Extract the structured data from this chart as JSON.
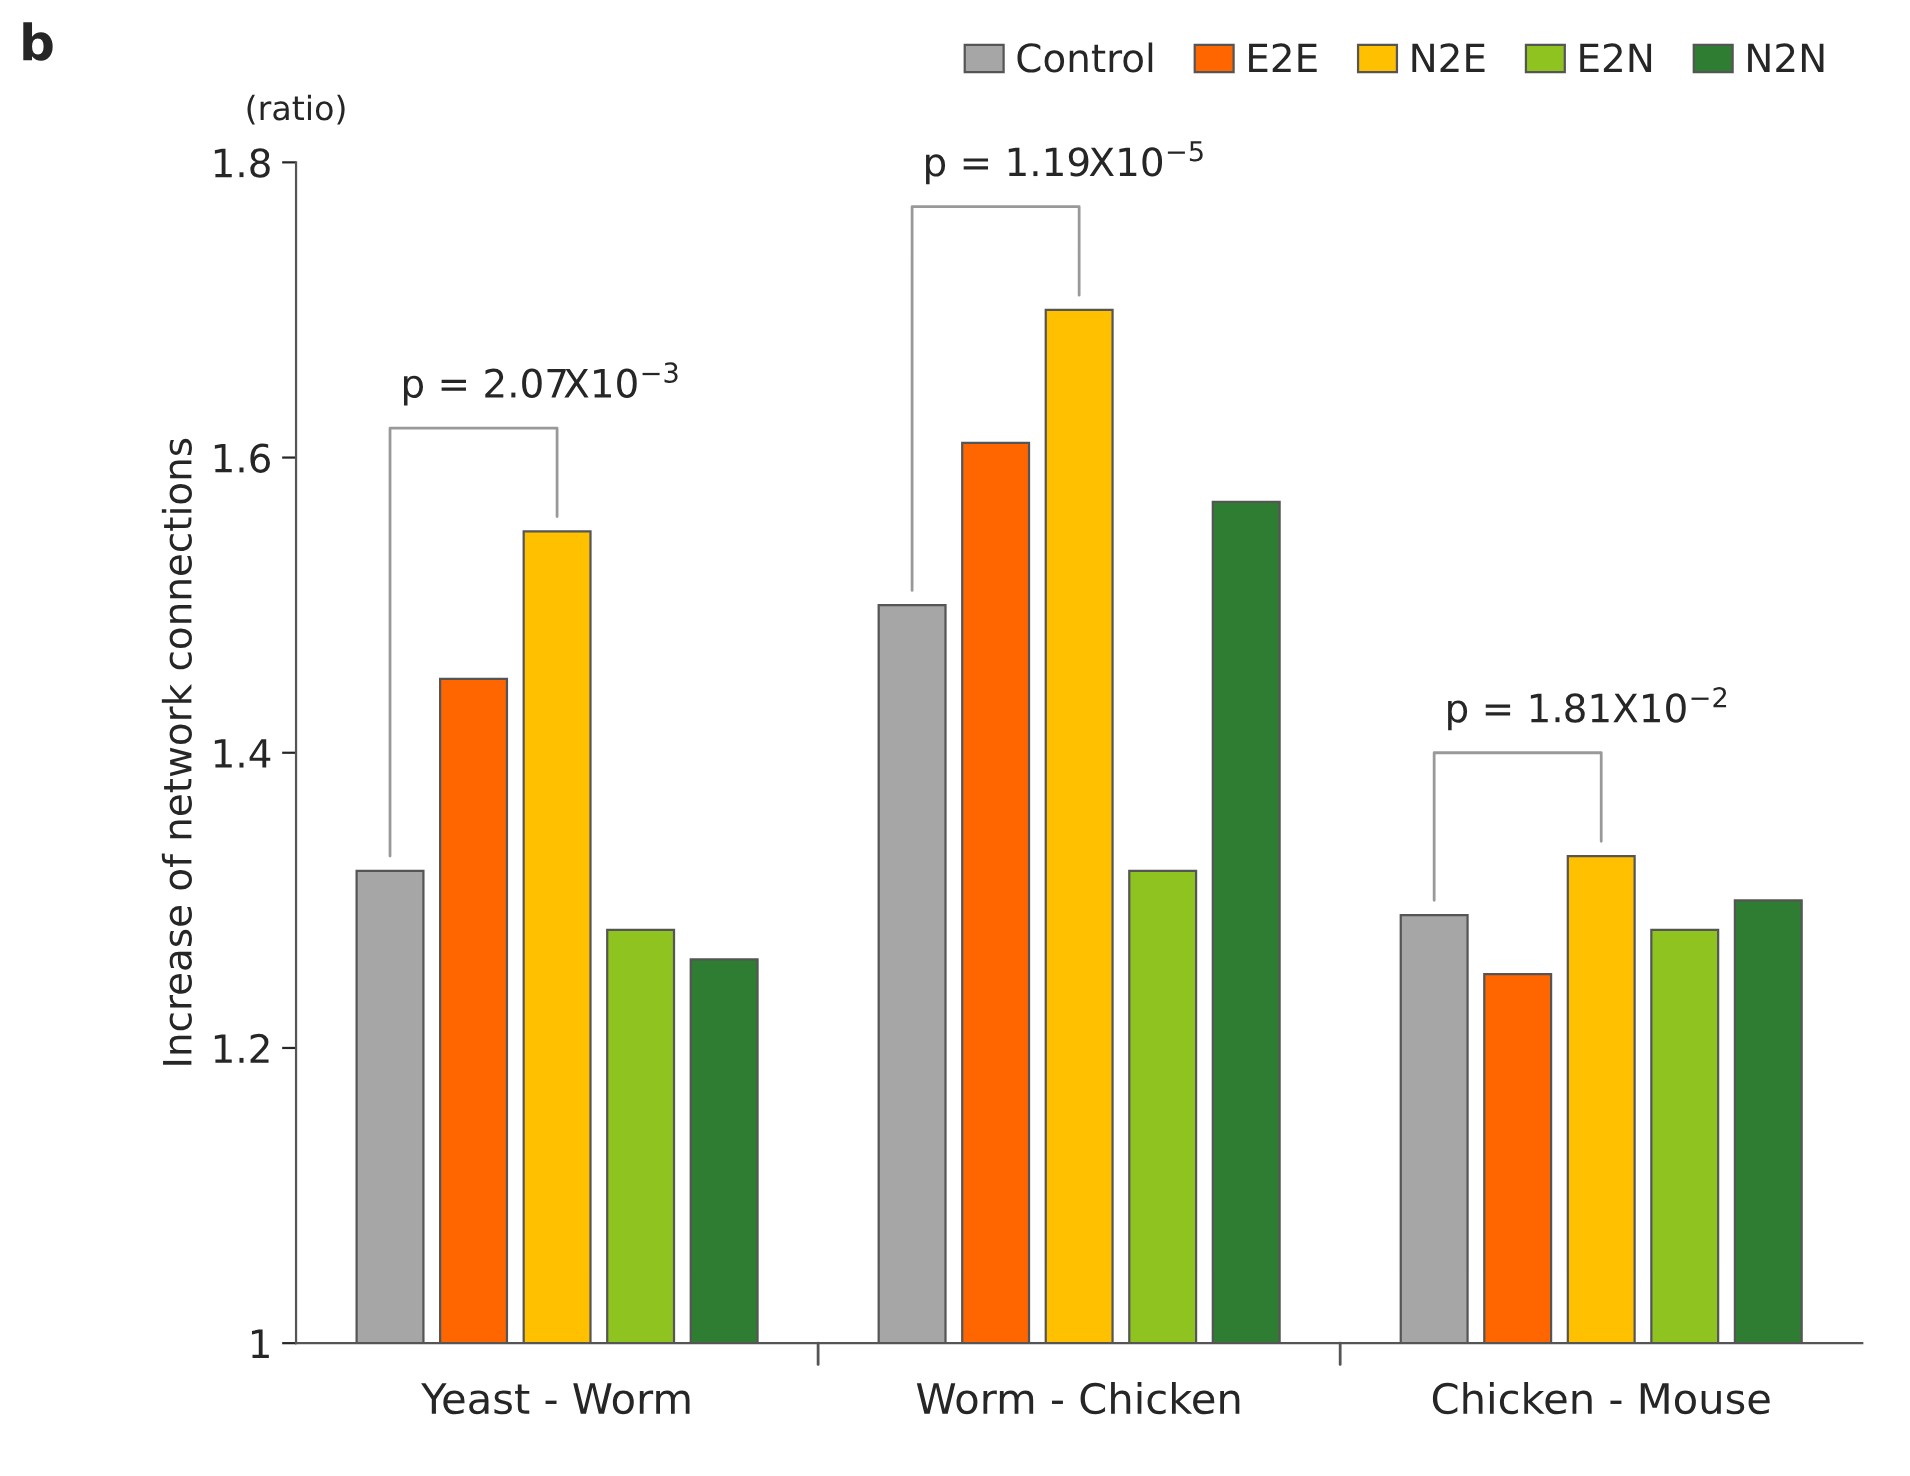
{
  "chart_data": {
    "type": "bar",
    "title": "b",
    "ylabel": "Increase of network connections",
    "categories": [
      "Yeast - Worm",
      "Worm - Chicken",
      "Chicken - Mouse"
    ],
    "series": [
      {
        "name": "Control",
        "color": "#a6a6a6",
        "values": [
          1.32,
          1.5,
          1.29
        ]
      },
      {
        "name": "E2E",
        "color": "#ff6600",
        "values": [
          1.45,
          1.61,
          1.25
        ]
      },
      {
        "name": "N2E",
        "color": "#ffc000",
        "values": [
          1.55,
          1.7,
          1.33
        ]
      },
      {
        "name": "E2N",
        "color": "#8fc31f",
        "values": [
          1.28,
          1.32,
          1.28
        ]
      },
      {
        "name": "N2N",
        "color": "#2e7d32",
        "values": [
          1.26,
          1.57,
          1.3
        ]
      }
    ],
    "ylim": [
      1,
      1.8
    ],
    "yticks": [
      1,
      1.2,
      1.4,
      1.6,
      1.8
    ],
    "grid": false,
    "legend": "top right",
    "annotations": [
      "p = 2.07X10$^{−3}$",
      "p = 1.19X10$^{−5}$",
      "p = 1.81X10$^{−2}$",
      "(ratio)"
    ]
  }
}
